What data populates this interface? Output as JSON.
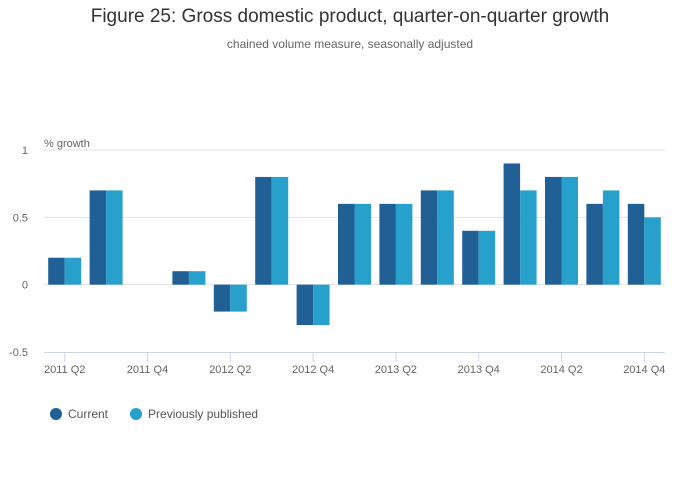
{
  "chart_data": {
    "type": "bar",
    "title": "Figure 25: Gross domestic product, quarter-on-quarter growth",
    "subtitle": "chained volume measure, seasonally adjusted",
    "ylabel": "% growth",
    "xlabel": "",
    "ylim": [
      -0.5,
      1
    ],
    "yticks": [
      -0.5,
      0,
      0.5,
      1
    ],
    "ytick_labels": [
      "-0.5",
      "0",
      "0.5",
      "1"
    ],
    "grid": true,
    "legend_position": "bottom-left",
    "categories": [
      "2011 Q2",
      "2011 Q3",
      "2011 Q4",
      "2012 Q1",
      "2012 Q2",
      "2012 Q3",
      "2012 Q4",
      "2013 Q1",
      "2013 Q2",
      "2013 Q3",
      "2013 Q4",
      "2014 Q1",
      "2014 Q2",
      "2014 Q3",
      "2014 Q4"
    ],
    "xtick_labels": [
      "2011 Q2",
      "2011 Q4",
      "2012 Q2",
      "2012 Q4",
      "2013 Q2",
      "2013 Q4",
      "2014 Q2",
      "2014 Q4"
    ],
    "series": [
      {
        "name": "Current",
        "color": "#206095",
        "values": [
          0.2,
          0.7,
          0,
          0.1,
          -0.2,
          0.8,
          -0.3,
          0.6,
          0.6,
          0.7,
          0.4,
          0.9,
          0.8,
          0.6,
          0.6
        ]
      },
      {
        "name": "Previously published",
        "color": "#27a0cc",
        "values": [
          0.2,
          0.7,
          0,
          0.1,
          -0.2,
          0.8,
          -0.3,
          0.6,
          0.6,
          0.7,
          0.4,
          0.7,
          0.8,
          0.7,
          0.5
        ]
      }
    ]
  }
}
